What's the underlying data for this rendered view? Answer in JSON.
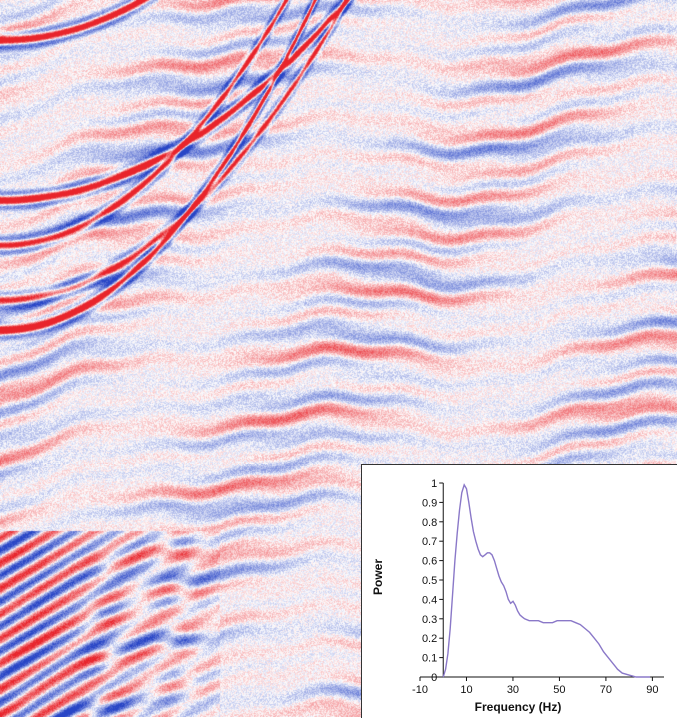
{
  "figure": {
    "background_panel": "seismic-section",
    "colors": {
      "positive_amplitude": "#e8242b",
      "negative_amplitude": "#2845c6",
      "background": "#ffffff",
      "spectrum_line": "#8a78c8"
    }
  },
  "chart_data": {
    "type": "line",
    "title": "",
    "xlabel": "Frequency (Hz)",
    "ylabel": "Power",
    "xlim": [
      -10,
      95
    ],
    "ylim": [
      0,
      1
    ],
    "x_ticks": [
      -10,
      10,
      30,
      50,
      70,
      90
    ],
    "y_ticks": [
      0,
      0.1,
      0.2,
      0.3,
      0.4,
      0.5,
      0.6,
      0.7,
      0.8,
      0.9,
      1
    ],
    "grid": false,
    "legend": "none",
    "series": [
      {
        "x": [
          0,
          1,
          2,
          3,
          4,
          5,
          6,
          7,
          8,
          9,
          10,
          11,
          12,
          13,
          14,
          15,
          16,
          17,
          18,
          19,
          20,
          21,
          22,
          23,
          24,
          25,
          26,
          27,
          28,
          29,
          30,
          31,
          32,
          33,
          34,
          35,
          37,
          39,
          41,
          43,
          45,
          47,
          49,
          51,
          53,
          55,
          57,
          59,
          61,
          63,
          65,
          67,
          69,
          71,
          73,
          75,
          77,
          80,
          83,
          86,
          89
        ],
        "y": [
          0.0,
          0.04,
          0.12,
          0.25,
          0.42,
          0.6,
          0.74,
          0.86,
          0.95,
          0.99,
          0.97,
          0.9,
          0.82,
          0.75,
          0.7,
          0.66,
          0.63,
          0.62,
          0.63,
          0.64,
          0.64,
          0.63,
          0.6,
          0.56,
          0.52,
          0.49,
          0.47,
          0.44,
          0.4,
          0.38,
          0.39,
          0.37,
          0.34,
          0.32,
          0.31,
          0.3,
          0.29,
          0.29,
          0.29,
          0.28,
          0.28,
          0.28,
          0.29,
          0.29,
          0.29,
          0.29,
          0.28,
          0.27,
          0.25,
          0.23,
          0.2,
          0.17,
          0.13,
          0.1,
          0.07,
          0.04,
          0.02,
          0.01,
          0.0,
          0.0,
          0.0
        ]
      }
    ]
  }
}
